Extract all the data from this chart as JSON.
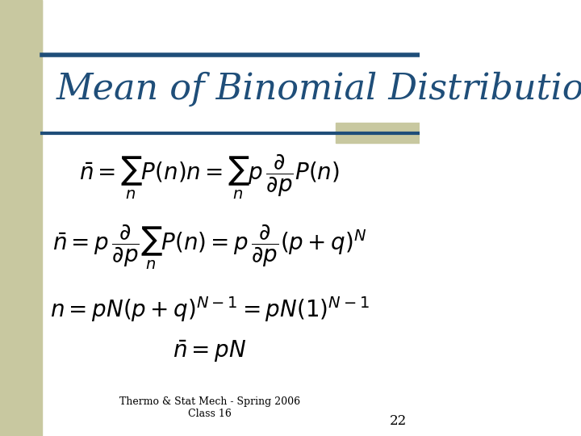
{
  "title": "Mean of Binomial Distribution",
  "title_color": "#1F4E79",
  "title_fontsize": 32,
  "bg_color": "#FFFFFF",
  "stripe_color": "#C8C8A0",
  "header_line_color": "#1F4E79",
  "footer_line1": "Thermo & Stat Mech - Spring 2006",
  "footer_line2": "Class 16",
  "footer_number": "22",
  "eq_fontsize": 20,
  "eq_color": "#000000"
}
